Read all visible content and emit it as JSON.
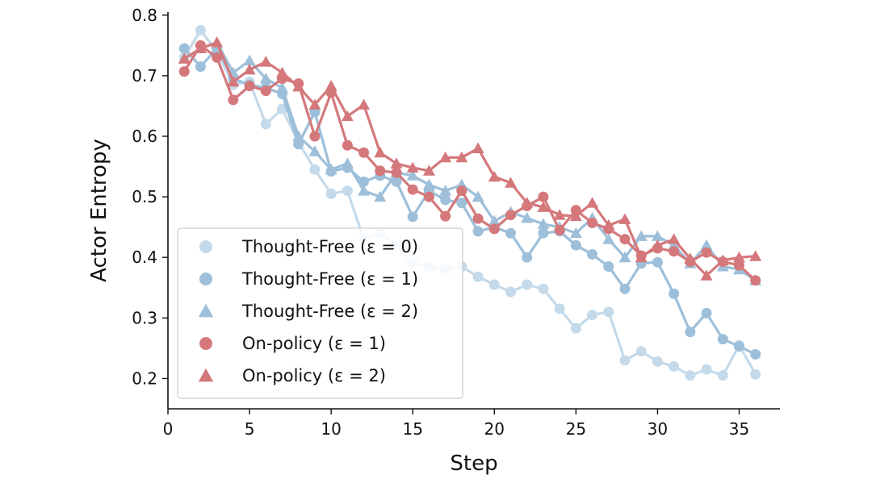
{
  "chart_data": {
    "type": "line",
    "xlabel": "Step",
    "ylabel": "Actor Entropy",
    "xlim": [
      0,
      37.5
    ],
    "ylim": [
      0.15,
      0.805
    ],
    "xticks": [
      0,
      5,
      10,
      15,
      20,
      25,
      30,
      35
    ],
    "yticks": [
      0.2,
      0.3,
      0.4,
      0.5,
      0.6,
      0.7,
      0.8
    ],
    "xtick_labels": [
      "0",
      "5",
      "10",
      "15",
      "20",
      "25",
      "30",
      "35"
    ],
    "ytick_labels": [
      "0.2",
      "0.3",
      "0.4",
      "0.5",
      "0.6",
      "0.7",
      "0.8"
    ],
    "grid": false,
    "legend_position": "lower-left",
    "x": [
      1,
      2,
      3,
      4,
      5,
      6,
      7,
      8,
      9,
      10,
      11,
      12,
      13,
      14,
      15,
      16,
      17,
      18,
      19,
      20,
      21,
      22,
      23,
      24,
      25,
      26,
      27,
      28,
      29,
      30,
      31,
      32,
      33,
      34,
      35,
      36
    ],
    "series": [
      {
        "name": "Thought-Free (ε = 0)",
        "color": "#c4daea",
        "marker": "circle",
        "values": [
          0.73,
          0.775,
          0.74,
          0.685,
          0.69,
          0.62,
          0.645,
          0.59,
          0.545,
          0.505,
          0.51,
          0.43,
          0.44,
          0.42,
          0.39,
          0.385,
          0.38,
          0.385,
          0.368,
          0.355,
          0.343,
          0.355,
          0.348,
          0.315,
          0.283,
          0.305,
          0.31,
          0.23,
          0.245,
          0.228,
          0.22,
          0.205,
          0.215,
          0.205,
          0.255,
          0.207
        ]
      },
      {
        "name": "Thought-Free (ε = 1)",
        "color": "#9dbfd9",
        "marker": "circle",
        "values": [
          0.745,
          0.715,
          0.745,
          0.695,
          0.685,
          0.68,
          0.67,
          0.587,
          0.64,
          0.542,
          0.548,
          0.525,
          0.535,
          0.525,
          0.467,
          0.51,
          0.495,
          0.49,
          0.443,
          0.45,
          0.44,
          0.4,
          0.44,
          0.443,
          0.42,
          0.405,
          0.385,
          0.348,
          0.39,
          0.392,
          0.34,
          0.277,
          0.308,
          0.265,
          0.253,
          0.24
        ]
      },
      {
        "name": "Thought-Free (ε = 2)",
        "color": "#9dbfd9",
        "marker": "triangle",
        "values": [
          0.728,
          0.745,
          0.755,
          0.705,
          0.725,
          0.695,
          0.68,
          0.6,
          0.575,
          0.545,
          0.555,
          0.51,
          0.5,
          0.54,
          0.535,
          0.52,
          0.51,
          0.52,
          0.5,
          0.46,
          0.475,
          0.465,
          0.455,
          0.45,
          0.44,
          0.465,
          0.43,
          0.4,
          0.435,
          0.435,
          0.42,
          0.39,
          0.42,
          0.385,
          0.38,
          0.362
        ]
      },
      {
        "name": "On-policy (ε = 1)",
        "color": "#d4787c",
        "marker": "circle",
        "values": [
          0.707,
          0.75,
          0.73,
          0.66,
          0.683,
          0.675,
          0.695,
          0.687,
          0.6,
          0.672,
          0.585,
          0.573,
          0.543,
          0.54,
          0.512,
          0.5,
          0.468,
          0.51,
          0.464,
          0.447,
          0.47,
          0.485,
          0.5,
          0.445,
          0.478,
          0.457,
          0.447,
          0.43,
          0.403,
          0.415,
          0.41,
          0.393,
          0.408,
          0.393,
          0.387,
          0.362
        ]
      },
      {
        "name": "On-policy (ε = 2)",
        "color": "#d4787c",
        "marker": "triangle",
        "values": [
          0.728,
          0.745,
          0.755,
          0.69,
          0.71,
          0.723,
          0.705,
          0.682,
          0.652,
          0.683,
          0.633,
          0.652,
          0.573,
          0.555,
          0.548,
          0.543,
          0.565,
          0.565,
          0.58,
          0.533,
          0.523,
          0.49,
          0.483,
          0.47,
          0.468,
          0.49,
          0.453,
          0.463,
          0.4,
          0.42,
          0.43,
          0.398,
          0.37,
          0.395,
          0.4,
          0.402
        ]
      }
    ]
  }
}
